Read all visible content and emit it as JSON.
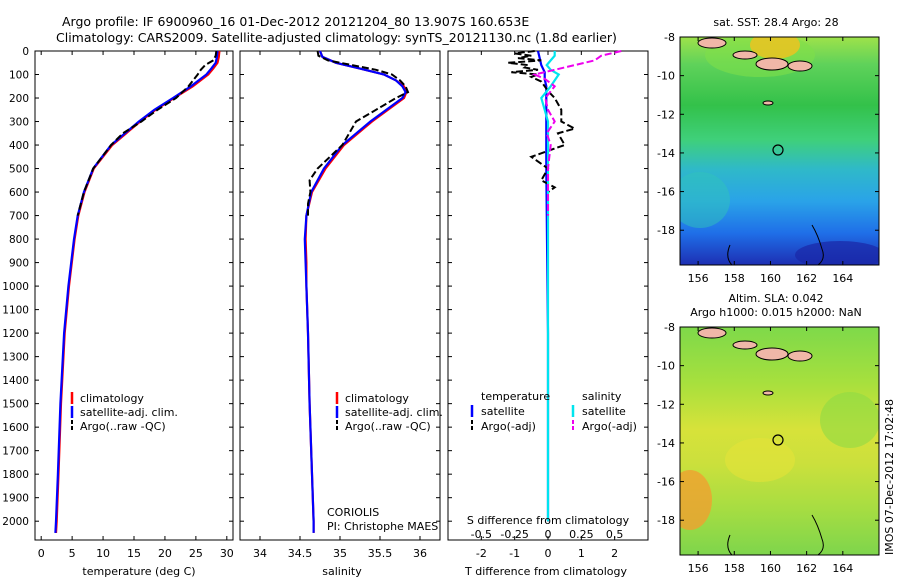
{
  "header": {
    "title_line1": "Argo profile: IF 6900960_16 01-Dec-2012 20121204_80 13.907S 160.653E",
    "title_line2": "Climatology: CARS2009. Satellite-adjusted climatology: synTS_20121130.nc (1.8d earlier)"
  },
  "colors": {
    "climatology": "#ff0000",
    "satellite": "#0000ff",
    "argo": "#000000",
    "salinity_satellite": "#00e5ee",
    "salinity_argo": "#ee00ee"
  },
  "chart_data": [
    {
      "type": "line",
      "xlabel": "temperature (deg C)",
      "xlim": [
        -1,
        31
      ],
      "ylim": [
        2080,
        0
      ],
      "x_ticks": [
        "0",
        "5",
        "10",
        "15",
        "20",
        "25",
        "30"
      ],
      "y_ticks": [
        "0",
        "100",
        "200",
        "300",
        "400",
        "500",
        "600",
        "700",
        "800",
        "900",
        "1000",
        "1100",
        "1200",
        "1300",
        "1400",
        "1500",
        "1600",
        "1700",
        "1800",
        "1900",
        "2000"
      ],
      "legend": {
        "position": "lower-center",
        "labels": [
          "climatology",
          "satellite-adj. clim.",
          "Argo(..raw -QC)"
        ]
      },
      "series": [
        {
          "name": "climatology",
          "depth": [
            0,
            25,
            50,
            75,
            100,
            150,
            200,
            250,
            300,
            400,
            500,
            600,
            700,
            800,
            1000,
            1200,
            1500,
            1800,
            2000,
            2050
          ],
          "values": [
            28.8,
            28.7,
            28.5,
            27.8,
            27.0,
            24.5,
            21.5,
            18.5,
            16.0,
            11.5,
            8.5,
            7.0,
            6.0,
            5.4,
            4.5,
            3.8,
            3.2,
            2.8,
            2.5,
            2.4
          ]
        },
        {
          "name": "satellite-adj. clim.",
          "depth": [
            0,
            25,
            50,
            75,
            100,
            150,
            200,
            250,
            300,
            400,
            500,
            600,
            700,
            800,
            1000,
            1200,
            1500,
            1800,
            2000,
            2050
          ],
          "values": [
            28.5,
            28.4,
            28.2,
            27.5,
            26.7,
            24.2,
            21.3,
            18.3,
            15.8,
            11.3,
            8.4,
            6.9,
            5.9,
            5.3,
            4.4,
            3.7,
            3.1,
            2.7,
            2.4,
            2.3
          ]
        },
        {
          "name": "Argo(..raw -QC)",
          "depth": [
            0,
            20,
            40,
            60,
            80,
            100,
            150,
            200,
            250,
            300,
            350,
            400,
            500,
            600,
            700
          ],
          "values": [
            28.3,
            28.2,
            27.8,
            26.5,
            25.8,
            25.3,
            23.8,
            21.8,
            18.8,
            16.2,
            13.2,
            11.3,
            8.4,
            6.9,
            5.9
          ]
        }
      ]
    },
    {
      "type": "line",
      "xlabel": "salinity",
      "xlim": [
        33.75,
        36.25
      ],
      "ylim": [
        2080,
        0
      ],
      "x_ticks": [
        "34",
        "34.5",
        "35",
        "35.5",
        "36"
      ],
      "legend": {
        "position": "lower-center",
        "labels": [
          "climatology",
          "satellite-adj. clim.",
          "Argo(..raw -QC)"
        ]
      },
      "annotation": [
        "CORIOLIS",
        "PI: Christophe MAES"
      ],
      "series": [
        {
          "name": "climatology",
          "depth": [
            0,
            25,
            50,
            75,
            100,
            125,
            150,
            175,
            200,
            250,
            300,
            400,
            500,
            600,
            700,
            800,
            900,
            1000,
            1200,
            1500,
            1800,
            2000,
            2050
          ],
          "values": [
            34.75,
            34.78,
            34.95,
            35.25,
            35.55,
            35.7,
            35.8,
            35.83,
            35.8,
            35.6,
            35.4,
            35.05,
            34.82,
            34.65,
            34.58,
            34.57,
            34.58,
            34.58,
            34.6,
            34.62,
            34.65,
            34.67,
            34.67
          ]
        },
        {
          "name": "satellite-adj. clim.",
          "depth": [
            0,
            25,
            50,
            75,
            100,
            125,
            150,
            175,
            200,
            250,
            300,
            400,
            500,
            600,
            700,
            800,
            900,
            1000,
            1200,
            1500,
            1800,
            2000,
            2050
          ],
          "values": [
            34.75,
            34.78,
            34.95,
            35.25,
            35.55,
            35.7,
            35.78,
            35.82,
            35.78,
            35.58,
            35.38,
            35.03,
            34.8,
            34.64,
            34.58,
            34.56,
            34.57,
            34.58,
            34.6,
            34.62,
            34.65,
            34.67,
            34.67
          ]
        },
        {
          "name": "Argo(..raw -QC)",
          "depth": [
            0,
            20,
            40,
            60,
            80,
            100,
            125,
            150,
            175,
            200,
            250,
            300,
            400,
            500,
            550,
            600,
            650,
            700
          ],
          "values": [
            34.72,
            34.73,
            34.85,
            35.15,
            35.45,
            35.65,
            35.75,
            35.82,
            35.85,
            35.7,
            35.45,
            35.2,
            35.03,
            34.72,
            34.62,
            34.63,
            34.6,
            34.6
          ]
        }
      ]
    },
    {
      "type": "line",
      "xlabel": "T difference from climatology",
      "top_axis_label": "S difference from climatology",
      "xlim": [
        -3,
        3
      ],
      "top_xlim": [
        -0.75,
        0.75
      ],
      "ylim": [
        2080,
        0
      ],
      "x_ticks": [
        "-2",
        "-1",
        "0",
        "1",
        "2"
      ],
      "top_x_ticks": [
        "-0.5",
        "-0.25",
        "0",
        "0.25",
        "0.5"
      ],
      "legend": {
        "position": "lower-center",
        "groups": [
          {
            "title": "temperature",
            "labels": [
              "satellite",
              "Argo(-adj)"
            ]
          },
          {
            "title": "salinity",
            "labels": [
              "satellite",
              "Argo(-adj)"
            ]
          }
        ]
      },
      "series": [
        {
          "name": "temperature satellite",
          "depth": [
            0,
            30,
            60,
            90,
            120,
            150,
            200,
            300,
            500,
            800,
            1200,
            2000
          ],
          "values": [
            -0.3,
            -0.25,
            -0.2,
            -0.1,
            -0.1,
            -0.05,
            -0.05,
            -0.05,
            -0.05,
            -0.03,
            0,
            0
          ]
        },
        {
          "name": "temperature Argo(-adj)",
          "depth": [
            0,
            10,
            20,
            30,
            40,
            50,
            60,
            70,
            80,
            90,
            100,
            110,
            130,
            150,
            170,
            200,
            250,
            300,
            330,
            350,
            400,
            450,
            500,
            550,
            580,
            600,
            700,
            800,
            1000,
            1200,
            1500,
            1800,
            2000
          ],
          "values": [
            -0.4,
            -1.0,
            -0.5,
            -0.9,
            -0.2,
            -1.2,
            -0.6,
            -0.7,
            -0.3,
            -1.1,
            -0.3,
            -0.5,
            -0.2,
            -0.1,
            0,
            0.2,
            0.4,
            0.4,
            0.8,
            0.3,
            0.5,
            -0.5,
            0,
            -0.2,
            0.2,
            0,
            0,
            0,
            0,
            0,
            0,
            0,
            0
          ]
        },
        {
          "name": "salinity satellite",
          "depth": [
            0,
            20,
            40,
            60,
            80,
            100,
            150,
            200,
            300,
            500,
            800,
            1200,
            2000
          ],
          "values": [
            0.05,
            0.05,
            0.02,
            -0.01,
            0.02,
            0.08,
            0.02,
            -0.05,
            0,
            0,
            0,
            0,
            0
          ]
        },
        {
          "name": "salinity Argo(-adj)",
          "depth": [
            0,
            20,
            40,
            60,
            80,
            100,
            120,
            150,
            200,
            250,
            300,
            350,
            400,
            500,
            600,
            700
          ],
          "values": [
            0.55,
            0.4,
            0.35,
            0.2,
            0.05,
            -0.1,
            -0.02,
            0.05,
            -0.02,
            0,
            0.05,
            -0.01,
            0.02,
            0,
            0,
            0
          ]
        }
      ]
    },
    {
      "type": "heatmap",
      "title": "sat. SST: 28.4 Argo: 28",
      "xlim": [
        155,
        166
      ],
      "ylim": [
        -19.8,
        -8
      ],
      "x_ticks": [
        "156",
        "158",
        "160",
        "162",
        "164"
      ],
      "y_ticks": [
        "-8",
        "-10",
        "-12",
        "-14",
        "-16",
        "-18"
      ],
      "marker": {
        "lon": 160.653,
        "lat": -13.907
      }
    },
    {
      "type": "heatmap",
      "title_line1": "Altim. SLA: 0.042",
      "title_line2": "Argo h1000: 0.015 h2000: NaN",
      "xlim": [
        155,
        166
      ],
      "ylim": [
        -19.8,
        -8
      ],
      "x_ticks": [
        "156",
        "158",
        "160",
        "162",
        "164"
      ],
      "y_ticks": [
        "-8",
        "-10",
        "-12",
        "-14",
        "-16",
        "-18"
      ],
      "marker": {
        "lon": 160.653,
        "lat": -13.907
      }
    }
  ],
  "footer": {
    "side_stamp": "IMOS 07-Dec-2012 17:02:48"
  }
}
